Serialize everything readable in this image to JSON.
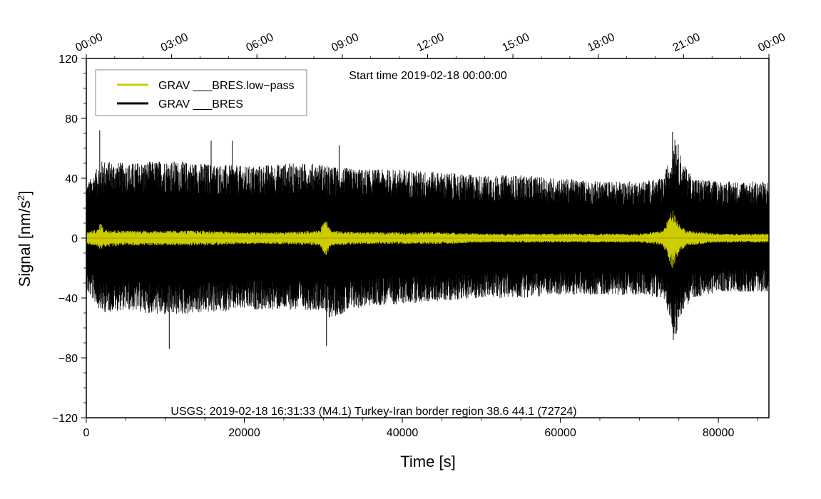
{
  "chart_data": {
    "type": "line",
    "annotation_top": "Start time 2019-02-18 00:00:00",
    "annotation_bottom": "USGS: 2019-02-18 16:31:33 (M4.1) Turkey-Iran border region 38.6 44.1 (72724)",
    "xlabel": "Time [s]",
    "ylabel_main": "Signal [nm/s",
    "ylabel_sup": "2",
    "ylabel_end": "]",
    "xlim": [
      0,
      86400
    ],
    "ylim": [
      -120,
      120
    ],
    "x_ticks": [
      0,
      20000,
      40000,
      60000,
      80000
    ],
    "x_tick_labels": [
      "0",
      "20000",
      "40000",
      "60000",
      "80000"
    ],
    "x_minor_step": 5000,
    "y_ticks": [
      -120,
      -80,
      -40,
      0,
      40,
      80,
      120
    ],
    "y_tick_labels": [
      "−120",
      "−80",
      "−40",
      "0",
      "40",
      "80",
      "120"
    ],
    "y_minor_step": 10,
    "top_axis_ticks": [
      0,
      10800,
      21600,
      32400,
      43200,
      54000,
      64800,
      75600,
      86400
    ],
    "top_axis_labels": [
      "00:00",
      "03:00",
      "06:00",
      "09:00",
      "12:00",
      "15:00",
      "18:00",
      "21:00",
      "00:00"
    ],
    "top_minor_step": 3600,
    "legend": {
      "placement": "top-left",
      "entries": [
        {
          "label": "GRAV ___BRES.low−pass",
          "color": "#cccc00"
        },
        {
          "label": "GRAV ___BRES",
          "color": "#000000"
        }
      ]
    },
    "series": [
      {
        "name": "GRAV ___BRES",
        "color": "#000000",
        "style": "dense-noise",
        "envelope": {
          "x": [
            0,
            1500,
            2000,
            5000,
            10000,
            15000,
            20000,
            25000,
            30000,
            30500,
            35000,
            40000,
            45000,
            50000,
            55000,
            60000,
            65000,
            70000,
            73000,
            74000,
            74500,
            75500,
            77000,
            80000,
            86400
          ],
          "upper": [
            36,
            48,
            52,
            50,
            52,
            50,
            48,
            50,
            50,
            48,
            46,
            46,
            44,
            42,
            42,
            40,
            38,
            38,
            40,
            56,
            72,
            50,
            40,
            38,
            38
          ],
          "lower": [
            -36,
            -46,
            -50,
            -48,
            -52,
            -50,
            -48,
            -48,
            -48,
            -54,
            -46,
            -44,
            -42,
            -40,
            -40,
            -38,
            -38,
            -38,
            -40,
            -55,
            -68,
            -48,
            -40,
            -36,
            -36
          ]
        },
        "spikes": [
          {
            "x": 1700,
            "y": 72
          },
          {
            "x": 10500,
            "y": -74
          },
          {
            "x": 15800,
            "y": 65
          },
          {
            "x": 18500,
            "y": 65
          },
          {
            "x": 30400,
            "y": -72
          },
          {
            "x": 32000,
            "y": 62
          },
          {
            "x": 74200,
            "y": 71
          },
          {
            "x": 74300,
            "y": -68
          }
        ]
      },
      {
        "name": "GRAV ___BRES.low−pass",
        "color": "#cccc00",
        "style": "narrow-band",
        "envelope": {
          "x": [
            0,
            1500,
            1800,
            2200,
            5000,
            10000,
            15000,
            20000,
            25000,
            29500,
            30300,
            31000,
            35000,
            40000,
            45000,
            50000,
            55000,
            60000,
            65000,
            70000,
            73000,
            74200,
            75000,
            76000,
            78000,
            80000,
            86400
          ],
          "upper": [
            4,
            6,
            11,
            6,
            5,
            5,
            5,
            4,
            4,
            5,
            15,
            5,
            4,
            4,
            4,
            3,
            3,
            3,
            3,
            3,
            5,
            20,
            10,
            5,
            4,
            3,
            3
          ],
          "lower": [
            -4,
            -6,
            -8,
            -6,
            -5,
            -5,
            -5,
            -4,
            -4,
            -5,
            -12,
            -5,
            -4,
            -4,
            -4,
            -3,
            -3,
            -3,
            -3,
            -3,
            -5,
            -21,
            -10,
            -5,
            -4,
            -3,
            -3
          ]
        }
      }
    ]
  }
}
